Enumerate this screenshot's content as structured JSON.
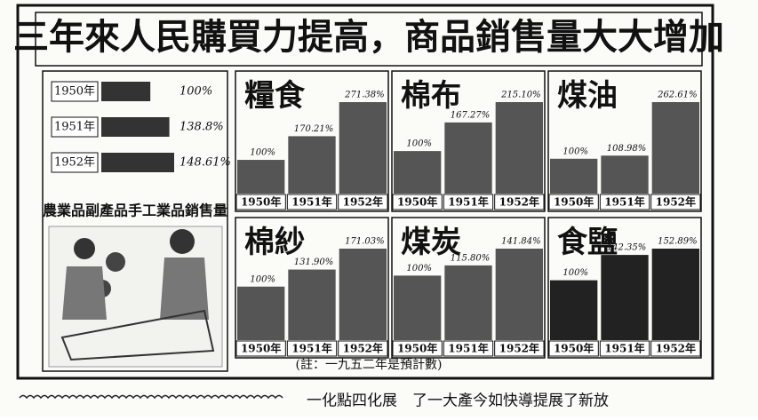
{
  "header": {
    "title": "三年來人民購買力提高，商品銷售量大大增加",
    "footnote": "(註：一九五二年是預計數)",
    "bottom_text": "一化點四化展　了一大產今如快導提展了新放"
  },
  "chart_data": [
    {
      "type": "hbar",
      "title": "農業品副產品手工業品銷售量",
      "categories": [
        "1950年",
        "1951年",
        "1952年"
      ],
      "values": [
        100,
        138.8,
        148.61
      ],
      "value_labels": [
        "100%",
        "138.8%",
        "148.61%"
      ],
      "color": "#333333"
    },
    {
      "type": "bar",
      "title": "糧食",
      "categories": [
        "1950年",
        "1951年",
        "1952年"
      ],
      "values": [
        100,
        170.21,
        271.38
      ],
      "value_labels": [
        "100%",
        "170.21%",
        "271.38%"
      ],
      "color": "#555555"
    },
    {
      "type": "bar",
      "title": "棉布",
      "categories": [
        "1950年",
        "1951年",
        "1952年"
      ],
      "values": [
        100,
        167.27,
        215.1
      ],
      "value_labels": [
        "100%",
        "167.27%",
        "215.10%"
      ],
      "color": "#555555"
    },
    {
      "type": "bar",
      "title": "煤油",
      "categories": [
        "1950年",
        "1951年",
        "1952年"
      ],
      "values": [
        100,
        108.98,
        262.61
      ],
      "value_labels": [
        "100%",
        "108.98%",
        "262.61%"
      ],
      "color": "#555555"
    },
    {
      "type": "bar",
      "title": "棉紗",
      "categories": [
        "1950年",
        "1951年",
        "1952年"
      ],
      "values": [
        100,
        131.9,
        171.03
      ],
      "value_labels": [
        "100%",
        "131.90%",
        "171.03%"
      ],
      "color": "#555555"
    },
    {
      "type": "bar",
      "title": "煤炭",
      "categories": [
        "1950年",
        "1951年",
        "1952年"
      ],
      "values": [
        100,
        115.8,
        141.84
      ],
      "value_labels": [
        "100%",
        "115.80%",
        "141.84%"
      ],
      "color": "#555555"
    },
    {
      "type": "bar",
      "title": "食鹽",
      "categories": [
        "1950年",
        "1951年",
        "1952年"
      ],
      "values": [
        100,
        142.35,
        152.89
      ],
      "value_labels": [
        "100%",
        "142.35%",
        "152.89%"
      ],
      "color": "#222222"
    }
  ]
}
